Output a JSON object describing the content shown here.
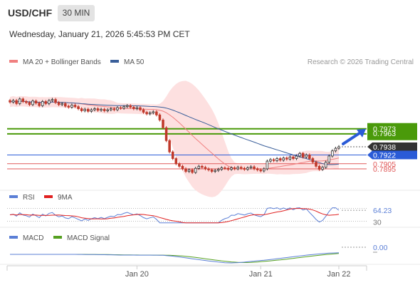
{
  "header": {
    "symbol": "USD/CHF",
    "timeframe": "30 MIN",
    "datetime": "Wednesday, January 21, 2026 5:45:53 PM CET"
  },
  "colors": {
    "price_up": "#333333",
    "price_down": "#c0392b",
    "bollinger_fill": "#fde0e0",
    "ma20": "#f08080",
    "ma50": "#3a5f9a",
    "support_resistance_green": "#4a9a0a",
    "support_line_blue": "#2a5bd7",
    "level_red": "#e05a5a",
    "arrow": "#2a5bd7",
    "rsi": "#5b7fd6",
    "rsi_ma": "#e02020",
    "macd": "#5b7fd6",
    "macd_signal": "#55a020"
  },
  "chart_data": [
    {
      "type": "candlestick",
      "legend": [
        {
          "name": "MA 20 + Bollinger Bands",
          "color": "#f08080"
        },
        {
          "name": "MA 50",
          "color": "#3a5f9a"
        }
      ],
      "source_text": "Research © 2026 Trading Central",
      "x_ticks": [
        "Jan 20",
        "Jan 21",
        "Jan 22"
      ],
      "y_labels": [
        {
          "value": 0.7973,
          "text": "0.7973",
          "style": "green"
        },
        {
          "value": 0.7963,
          "text": "0.7963",
          "style": "green-hidden"
        },
        {
          "value": 0.7938,
          "text": "0.7938",
          "style": "dark"
        },
        {
          "value": 0.7922,
          "text": "0.7922",
          "style": "blue"
        },
        {
          "value": 0.7905,
          "text": "0.7905",
          "style": "red-text"
        },
        {
          "value": 0.7895,
          "text": "0.7895",
          "style": "red-text"
        }
      ],
      "levels": [
        {
          "value": 0.7973,
          "color": "green"
        },
        {
          "value": 0.7963,
          "color": "green"
        },
        {
          "value": 0.7922,
          "color": "blue"
        },
        {
          "value": 0.7905,
          "color": "red"
        },
        {
          "value": 0.7895,
          "color": "red"
        }
      ],
      "last_price": 0.7938,
      "y_range": [
        0.787,
        0.8078
      ],
      "closes": [
        0.8025,
        0.8028,
        0.8022,
        0.8031,
        0.8026,
        0.8024,
        0.802,
        0.8027,
        0.8023,
        0.8018,
        0.8026,
        0.8022,
        0.8028,
        0.803,
        0.8024,
        0.802,
        0.8022,
        0.8017,
        0.8015,
        0.8019,
        0.8016,
        0.8012,
        0.8008,
        0.8011,
        0.8007,
        0.801,
        0.8012,
        0.8009,
        0.8011,
        0.8008,
        0.801,
        0.8012,
        0.801,
        0.8014,
        0.8013,
        0.8016,
        0.8018,
        0.8015,
        0.8012,
        0.8014,
        0.801,
        0.8005,
        0.8002,
        0.8004,
        0.8006,
        0.8,
        0.799,
        0.7975,
        0.795,
        0.7928,
        0.7915,
        0.7905,
        0.79,
        0.7895,
        0.789,
        0.7893,
        0.7888,
        0.7896,
        0.79,
        0.7898,
        0.7895,
        0.7893,
        0.789,
        0.7892,
        0.7894,
        0.7897,
        0.7896,
        0.7894,
        0.7897,
        0.7895,
        0.7898,
        0.7896,
        0.7894,
        0.7897,
        0.7899,
        0.7895,
        0.7893,
        0.7891,
        0.7895,
        0.791,
        0.7913,
        0.7911,
        0.7915,
        0.7912,
        0.7916,
        0.7914,
        0.7918,
        0.7915,
        0.792,
        0.7925,
        0.7918,
        0.7922,
        0.7915,
        0.7908,
        0.79,
        0.7894,
        0.7898,
        0.7908,
        0.792,
        0.793,
        0.7935,
        0.7938
      ],
      "rsi": {
        "legend": [
          {
            "name": "RSI",
            "color": "#5b7fd6"
          },
          {
            "name": "9MA",
            "color": "#e02020"
          }
        ],
        "labels": [
          "64.23",
          "30"
        ],
        "last": 64.23
      },
      "macd": {
        "legend": [
          {
            "name": "MACD",
            "color": "#5b7fd6"
          },
          {
            "name": "MACD Signal",
            "color": "#55a020"
          }
        ],
        "labels": [
          "0.00"
        ],
        "last": 0.0
      }
    }
  ]
}
